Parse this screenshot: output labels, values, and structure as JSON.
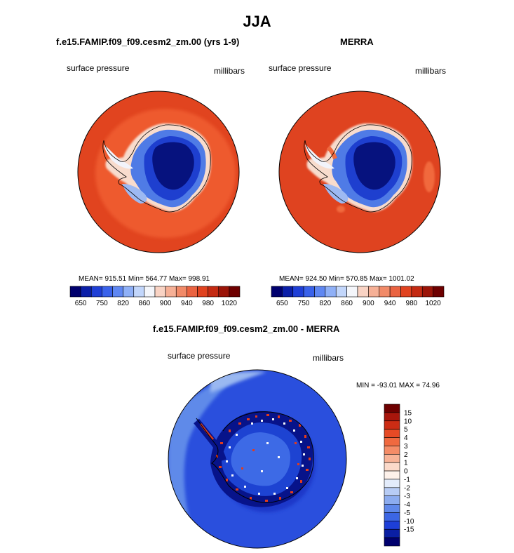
{
  "title": "JJA",
  "panels": [
    {
      "title": "f.e15.FAMIP.f09_f09.cesm2_zm.00 (yrs 1-9)",
      "left_label": "surface pressure",
      "right_label": "millibars",
      "stats": "MEAN= 915.51  Min= 564.77  Max= 998.91"
    },
    {
      "title": "MERRA",
      "left_label": "surface pressure",
      "right_label": "millibars",
      "stats": "MEAN= 924.50  Min= 570.85  Max= 1001.02"
    },
    {
      "title": "f.e15.FAMIP.f09_f09.cesm2_zm.00 - MERRA",
      "left_label": "surface pressure",
      "right_label": "millibars",
      "stats": "MIN = -93.01 MAX =  74.96"
    }
  ],
  "chart_data": [
    {
      "type": "heatmap",
      "title": "f.e15.FAMIP.f09_f09.cesm2_zm.00 (yrs 1-9)",
      "variable": "surface pressure",
      "units": "millibars",
      "projection": "south-polar stereographic",
      "mean": 915.51,
      "min": 564.77,
      "max": 998.91,
      "colorbar_levels": [
        650,
        750,
        820,
        860,
        900,
        940,
        980,
        1020
      ],
      "colorbar_orientation": "horizontal"
    },
    {
      "type": "heatmap",
      "title": "MERRA",
      "variable": "surface pressure",
      "units": "millibars",
      "projection": "south-polar stereographic",
      "mean": 924.5,
      "min": 570.85,
      "max": 1001.02,
      "colorbar_levels": [
        650,
        750,
        820,
        860,
        900,
        940,
        980,
        1020
      ],
      "colorbar_orientation": "horizontal"
    },
    {
      "type": "heatmap",
      "title": "f.e15.FAMIP.f09_f09.cesm2_zm.00 - MERRA",
      "variable": "surface pressure",
      "units": "millibars",
      "projection": "south-polar stereographic",
      "min": -93.01,
      "max": 74.96,
      "colorbar_levels": [
        15,
        10,
        5,
        4,
        3,
        2,
        1,
        0,
        -1,
        -2,
        -3,
        -4,
        -5,
        -10,
        -15
      ],
      "colorbar_orientation": "vertical"
    }
  ],
  "colors": {
    "abs_scale": [
      "#00006e",
      "#0b1fa8",
      "#1f3fd6",
      "#3a62ea",
      "#5f87f2",
      "#8fb0f7",
      "#c2d6fb",
      "#f4f6fb",
      "#f9d3c4",
      "#f6b096",
      "#f18a68",
      "#ea6341",
      "#e0421f",
      "#c42a12",
      "#9b1408",
      "#6e0000"
    ],
    "diff_scale": [
      "#6e0000",
      "#a8160c",
      "#cc2c14",
      "#e64a25",
      "#f0693f",
      "#f58c67",
      "#f8b397",
      "#fbd9c9",
      "#fdf1ea",
      "#e3ecfb",
      "#b7ccf5",
      "#8cacef",
      "#5f88ea",
      "#3c66e4",
      "#1d3fd8",
      "#0a1fa3",
      "#00006e"
    ]
  }
}
